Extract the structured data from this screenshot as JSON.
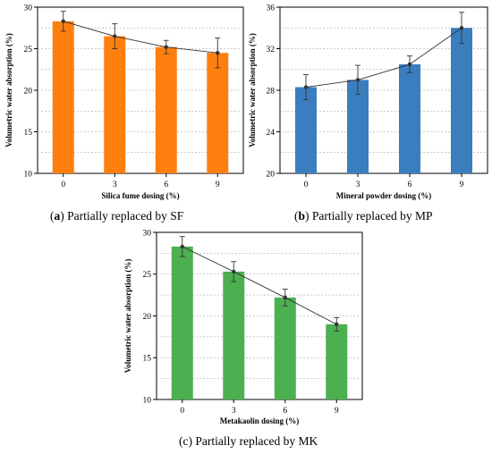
{
  "chart_data": [
    {
      "type": "bar",
      "panel": "a",
      "caption_letter": "a",
      "caption_text": " Partially replaced by SF",
      "xlabel": "Silica fume dosing (%)",
      "ylabel": "Volumetric water absorption (%)",
      "categories": [
        "0",
        "3",
        "6",
        "9"
      ],
      "values": [
        28.3,
        26.5,
        25.2,
        24.5
      ],
      "errors": [
        1.2,
        1.5,
        0.8,
        1.8
      ],
      "ylim": [
        10,
        30
      ],
      "yticks": [
        10,
        15,
        20,
        25,
        30
      ],
      "bar_color": "#ff7f0e",
      "trend_line": true,
      "grid": "horizontal-dashed"
    },
    {
      "type": "bar",
      "panel": "b",
      "caption_letter": "b",
      "caption_text": " Partially replaced by MP",
      "xlabel": "Mineral powder dosing (%)",
      "ylabel": "Volumetric water absorption (%)",
      "categories": [
        "0",
        "3",
        "6",
        "9"
      ],
      "values": [
        28.3,
        29.0,
        30.5,
        34.0
      ],
      "errors": [
        1.2,
        1.4,
        0.8,
        1.5
      ],
      "ylim": [
        20,
        36
      ],
      "yticks": [
        20,
        24,
        28,
        32,
        36
      ],
      "bar_color": "#3a7ebf",
      "trend_line": true,
      "grid": "horizontal-dashed"
    },
    {
      "type": "bar",
      "panel": "c",
      "caption_letter": "",
      "caption_text": "(c) Partially replaced by MK",
      "xlabel": "Metakaolin dosing (%)",
      "ylabel": "Volumetric water absorption (%)",
      "categories": [
        "0",
        "3",
        "6",
        "9"
      ],
      "values": [
        28.3,
        25.3,
        22.2,
        19.0
      ],
      "errors": [
        1.2,
        1.2,
        1.0,
        0.8
      ],
      "ylim": [
        10,
        30
      ],
      "yticks": [
        10,
        15,
        20,
        25,
        30
      ],
      "bar_color": "#4caf50",
      "trend_line": true,
      "grid": "horizontal-dashed"
    }
  ]
}
